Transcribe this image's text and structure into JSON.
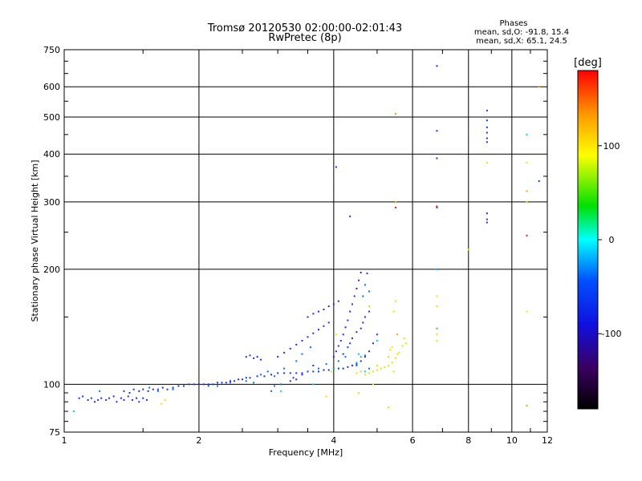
{
  "chart_data": {
    "type": "scatter",
    "title": "Tromsø 20120530 02:00:00-02:01:43",
    "subtitle": "RwPretec (8p)",
    "xlabel": "Frequency [MHz]",
    "ylabel": "Stationary phase Virtual Height [km]",
    "x_scale": "log",
    "y_scale": "log",
    "xlim": [
      1,
      12
    ],
    "ylim": [
      75,
      750
    ],
    "x_ticks": [
      1,
      2,
      4,
      6,
      8,
      10,
      12
    ],
    "y_ticks": [
      75,
      100,
      200,
      300,
      400,
      500,
      600,
      750
    ],
    "grid": true,
    "legend": {
      "title": "Phases",
      "lines": [
        "mean, sd,O: -91.8, 15.4",
        "mean, sd,X: 65.1, 24.5"
      ]
    },
    "colorbar": {
      "label": "[deg]",
      "ticks": [
        100,
        0,
        -100
      ],
      "range": [
        -180,
        180
      ],
      "colormap": "rainbow"
    },
    "series": [
      {
        "color": "#1e2ee6",
        "points": [
          [
            1.08,
            92
          ],
          [
            1.1,
            93
          ],
          [
            1.13,
            91
          ],
          [
            1.15,
            92
          ],
          [
            1.17,
            90
          ],
          [
            1.19,
            91
          ],
          [
            1.21,
            92
          ],
          [
            1.24,
            91
          ],
          [
            1.26,
            92
          ],
          [
            1.29,
            93
          ],
          [
            1.31,
            90
          ],
          [
            1.34,
            92
          ],
          [
            1.36,
            91
          ],
          [
            1.39,
            93
          ],
          [
            1.42,
            91
          ],
          [
            1.45,
            92
          ],
          [
            1.47,
            90
          ],
          [
            1.5,
            92
          ],
          [
            1.53,
            91
          ],
          [
            1.36,
            96
          ],
          [
            1.4,
            95
          ],
          [
            1.43,
            97
          ],
          [
            1.47,
            96
          ],
          [
            1.5,
            97
          ],
          [
            1.54,
            96
          ],
          [
            1.58,
            97
          ],
          [
            1.62,
            97
          ],
          [
            1.66,
            98
          ],
          [
            1.7,
            97
          ],
          [
            1.75,
            98
          ],
          [
            1.8,
            99
          ],
          [
            1.85,
            99
          ],
          [
            1.9,
            100
          ],
          [
            1.95,
            100
          ],
          [
            2.0,
            100
          ],
          [
            2.05,
            100
          ],
          [
            2.1,
            100
          ],
          [
            2.15,
            100
          ],
          [
            2.2,
            101
          ],
          [
            2.25,
            101
          ],
          [
            2.3,
            101
          ],
          [
            2.35,
            102
          ],
          [
            2.4,
            102
          ],
          [
            2.45,
            103
          ],
          [
            2.5,
            103
          ],
          [
            2.55,
            104
          ],
          [
            2.6,
            104
          ],
          [
            2.7,
            105
          ],
          [
            2.8,
            105
          ],
          [
            2.9,
            106
          ],
          [
            3.0,
            107
          ],
          [
            3.1,
            107
          ],
          [
            3.2,
            107
          ],
          [
            3.3,
            107
          ],
          [
            3.4,
            107
          ],
          [
            3.5,
            108
          ],
          [
            3.6,
            108
          ],
          [
            3.7,
            108
          ],
          [
            3.8,
            109
          ],
          [
            3.9,
            109
          ],
          [
            4.0,
            110
          ],
          [
            4.1,
            110
          ],
          [
            4.2,
            110
          ],
          [
            4.3,
            111
          ],
          [
            4.4,
            112
          ],
          [
            4.5,
            113
          ],
          [
            4.6,
            115
          ],
          [
            4.7,
            118
          ],
          [
            4.8,
            122
          ],
          [
            4.9,
            128
          ],
          [
            5.0,
            135
          ],
          [
            4.0,
            118
          ],
          [
            4.05,
            122
          ],
          [
            4.1,
            126
          ],
          [
            4.15,
            130
          ],
          [
            4.2,
            135
          ],
          [
            4.25,
            141
          ],
          [
            4.3,
            147
          ],
          [
            4.35,
            155
          ],
          [
            4.4,
            162
          ],
          [
            4.45,
            170
          ],
          [
            4.5,
            178
          ],
          [
            4.55,
            187
          ],
          [
            4.6,
            196
          ],
          [
            3.0,
            118
          ],
          [
            3.1,
            121
          ],
          [
            3.2,
            124
          ],
          [
            3.3,
            127
          ],
          [
            3.4,
            130
          ],
          [
            3.5,
            133
          ],
          [
            3.6,
            136
          ],
          [
            3.7,
            139
          ],
          [
            3.8,
            142
          ],
          [
            3.9,
            145
          ],
          [
            3.5,
            150
          ],
          [
            3.6,
            153
          ],
          [
            3.7,
            155
          ],
          [
            3.8,
            157
          ],
          [
            3.9,
            160
          ],
          [
            4.0,
            162
          ],
          [
            4.1,
            165
          ],
          [
            2.55,
            118
          ],
          [
            2.6,
            119
          ],
          [
            2.65,
            117
          ],
          [
            2.7,
            118
          ],
          [
            2.75,
            116
          ],
          [
            3.2,
            102
          ],
          [
            3.25,
            104
          ],
          [
            3.3,
            103
          ],
          [
            3.4,
            106
          ],
          [
            3.6,
            112
          ],
          [
            4.4,
            132
          ],
          [
            4.5,
            137
          ],
          [
            4.6,
            140
          ],
          [
            4.65,
            145
          ],
          [
            4.7,
            150
          ],
          [
            4.8,
            155
          ],
          [
            4.2,
            120
          ],
          [
            4.3,
            125
          ],
          [
            4.35,
            128
          ],
          [
            4.05,
            370
          ],
          [
            4.35,
            275
          ],
          [
            4.75,
            195
          ],
          [
            6.8,
            680
          ],
          [
            6.8,
            460
          ],
          [
            6.8,
            390
          ],
          [
            6.8,
            290
          ],
          [
            6.8,
            200
          ],
          [
            8.8,
            520
          ],
          [
            8.8,
            490
          ],
          [
            8.8,
            470
          ],
          [
            8.8,
            455
          ],
          [
            8.8,
            440
          ],
          [
            8.8,
            430
          ],
          [
            8.8,
            280
          ],
          [
            8.8,
            270
          ],
          [
            8.8,
            265
          ],
          [
            11.5,
            340
          ]
        ]
      },
      {
        "color": "#0a6ee6",
        "points": [
          [
            1.2,
            96
          ],
          [
            1.55,
            98
          ],
          [
            1.62,
            96
          ],
          [
            1.75,
            97
          ],
          [
            2.1,
            99
          ],
          [
            2.2,
            99
          ],
          [
            2.35,
            101
          ],
          [
            2.55,
            102
          ],
          [
            2.65,
            101
          ],
          [
            2.75,
            106
          ],
          [
            2.85,
            108
          ],
          [
            2.95,
            105
          ],
          [
            3.1,
            110
          ],
          [
            3.3,
            115
          ],
          [
            3.4,
            120
          ],
          [
            3.55,
            125
          ],
          [
            3.7,
            110
          ],
          [
            3.85,
            113
          ],
          [
            4.1,
            115
          ],
          [
            4.25,
            118
          ],
          [
            4.5,
            112
          ],
          [
            4.7,
            119
          ],
          [
            4.8,
            110
          ],
          [
            4.65,
            170
          ],
          [
            4.8,
            175
          ],
          [
            4.7,
            182
          ],
          [
            2.9,
            96
          ],
          [
            2.95,
            99
          ],
          [
            3.05,
            100
          ]
        ]
      },
      {
        "color": "#00c8ff",
        "points": [
          [
            1.05,
            85
          ],
          [
            3.05,
            96
          ],
          [
            3.6,
            100
          ],
          [
            4.5,
            114
          ],
          [
            4.55,
            120
          ],
          [
            4.6,
            108
          ],
          [
            4.7,
            108
          ],
          [
            6.8,
            200
          ],
          [
            10.8,
            450
          ],
          [
            5.0,
            130
          ]
        ]
      },
      {
        "color": "#2ecc3a",
        "points": [
          [
            4.0,
            110
          ],
          [
            4.6,
            118
          ],
          [
            6.8,
            140
          ]
        ]
      },
      {
        "color": "#e6e600",
        "points": [
          [
            4.5,
            107
          ],
          [
            4.6,
            108
          ],
          [
            4.7,
            106
          ],
          [
            4.8,
            107
          ],
          [
            4.9,
            108
          ],
          [
            5.0,
            109
          ],
          [
            5.1,
            110
          ],
          [
            5.2,
            111
          ],
          [
            5.3,
            112
          ],
          [
            5.4,
            114
          ],
          [
            5.5,
            117
          ],
          [
            5.6,
            121
          ],
          [
            5.7,
            126
          ],
          [
            5.75,
            132
          ],
          [
            5.8,
            128
          ],
          [
            5.3,
            118
          ],
          [
            5.4,
            125
          ],
          [
            5.35,
            123
          ],
          [
            5.0,
            112
          ],
          [
            5.45,
            108
          ],
          [
            5.55,
            120
          ],
          [
            4.9,
            100
          ],
          [
            3.95,
            108
          ],
          [
            5.5,
            165
          ],
          [
            5.45,
            155
          ],
          [
            4.8,
            160
          ],
          [
            6.8,
            130
          ],
          [
            6.8,
            135
          ],
          [
            6.8,
            160
          ],
          [
            6.8,
            170
          ],
          [
            8.8,
            380
          ],
          [
            8.0,
            225
          ],
          [
            10.8,
            380
          ],
          [
            10.8,
            155
          ],
          [
            10.8,
            300
          ],
          [
            4.05,
            135
          ],
          [
            3.85,
            93
          ],
          [
            4.55,
            95
          ],
          [
            5.3,
            87
          ],
          [
            1.65,
            89
          ],
          [
            1.68,
            91
          ]
        ]
      },
      {
        "color": "#ff9a00",
        "points": [
          [
            5.5,
            510
          ],
          [
            5.5,
            300
          ],
          [
            5.55,
            135
          ],
          [
            10.8,
            320
          ],
          [
            11.5,
            600
          ],
          [
            10.8,
            88
          ]
        ]
      },
      {
        "color": "#e61e00",
        "points": [
          [
            10.8,
            245
          ],
          [
            5.5,
            290
          ],
          [
            6.8,
            292
          ]
        ]
      }
    ]
  }
}
